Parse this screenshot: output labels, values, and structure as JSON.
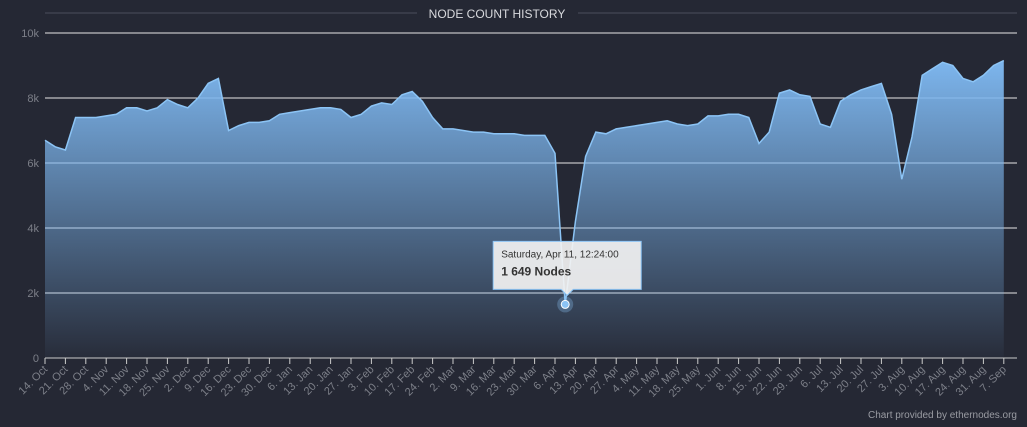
{
  "chart_data": {
    "type": "area",
    "title": "NODE COUNT HISTORY",
    "credits": "Chart provided by ethernodes.org",
    "categories": [
      "14. Oct",
      null,
      "21. Oct",
      null,
      "28. Oct",
      null,
      "4. Nov",
      null,
      "11. Nov",
      null,
      "18. Nov",
      null,
      "25. Nov",
      null,
      "2. Dec",
      null,
      "9. Dec",
      null,
      "16. Dec",
      null,
      "23. Dec",
      null,
      "30. Dec",
      null,
      "6. Jan",
      null,
      "13. Jan",
      null,
      "20. Jan",
      null,
      "27. Jan",
      null,
      "3. Feb",
      null,
      "10. Feb",
      null,
      "17. Feb",
      null,
      "24. Feb",
      null,
      "2. Mar",
      null,
      "9. Mar",
      null,
      "16. Mar",
      null,
      "23. Mar",
      null,
      "30. Mar",
      null,
      "6. Apr",
      null,
      "13. Apr",
      null,
      "20. Apr",
      null,
      "27. Apr",
      null,
      "4. May",
      null,
      "11. May",
      null,
      "18. May",
      null,
      "25. May",
      null,
      "1. Jun",
      null,
      "8. Jun",
      null,
      "15. Jun",
      null,
      "22. Jun",
      null,
      "29. Jun",
      null,
      "6. Jul",
      null,
      "13. Jul",
      null,
      "20. Jul",
      null,
      "27. Jul",
      null,
      "3. Aug",
      null,
      "10. Aug",
      null,
      "17. Aug",
      null,
      "24. Aug",
      null,
      "31. Aug",
      null,
      "7. Sep"
    ],
    "series": [
      {
        "color": "#8cc4f5",
        "values": [
          6700,
          6500,
          6400,
          7400,
          7400,
          7400,
          7450,
          7500,
          7700,
          7700,
          7600,
          7700,
          7950,
          7800,
          7700,
          8000,
          8450,
          8600,
          7000,
          7150,
          7250,
          7250,
          7300,
          7500,
          7550,
          7600,
          7650,
          7700,
          7700,
          7650,
          7400,
          7500,
          7750,
          7850,
          7800,
          8100,
          8200,
          7900,
          7400,
          7050,
          7050,
          7000,
          6950,
          6950,
          6900,
          6900,
          6900,
          6850,
          6850,
          6850,
          6300,
          1649,
          4200,
          6200,
          6950,
          6900,
          7050,
          7100,
          7150,
          7200,
          7250,
          7300,
          7200,
          7150,
          7200,
          7450,
          7450,
          7500,
          7500,
          7400,
          6600,
          6950,
          8150,
          8250,
          8100,
          8050,
          7200,
          7100,
          7900,
          8100,
          8250,
          8350,
          8450,
          7500,
          5500,
          6800,
          8700,
          8900,
          9100,
          9000,
          8600,
          8500,
          8700,
          9000,
          9150
        ]
      }
    ],
    "ylim": [
      0,
      10000
    ],
    "yticks": [
      0,
      {
        "value": 2000,
        "label": "2k"
      },
      {
        "value": 4000,
        "label": "4k"
      },
      {
        "value": 6000,
        "label": "6k"
      },
      {
        "value": 8000,
        "label": "8k"
      },
      {
        "value": 10000,
        "label": "10k"
      }
    ],
    "grid": true,
    "tooltip": {
      "date": "Saturday, Apr 11, 12:24:00",
      "label": "1 649 Nodes"
    }
  }
}
